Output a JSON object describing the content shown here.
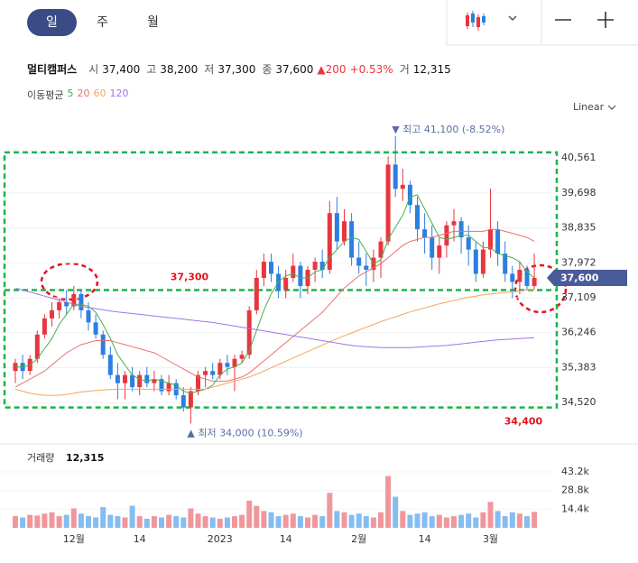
{
  "toolbar": {
    "tabs": [
      "일",
      "주",
      "월"
    ],
    "selected": 0
  },
  "header": {
    "name": "멀티캠퍼스",
    "fields": [
      {
        "label": "시",
        "value": "37,400"
      },
      {
        "label": "고",
        "value": "38,200"
      },
      {
        "label": "저",
        "value": "37,300"
      },
      {
        "label": "종",
        "value": "37,600"
      }
    ],
    "change": "▲200",
    "change_pct": "+0.53%",
    "volume_label": "거",
    "volume": "12,315"
  },
  "ma_legend_title": "이동평균",
  "scale_selector": "Linear",
  "chart_data": {
    "type": "candlestick",
    "categories": [
      null,
      null,
      null,
      null,
      null,
      null,
      null,
      null,
      "12월",
      null,
      null,
      null,
      null,
      null,
      null,
      null,
      null,
      "14",
      null,
      null,
      null,
      null,
      null,
      null,
      null,
      null,
      null,
      null,
      "2023",
      null,
      null,
      null,
      null,
      null,
      null,
      null,
      null,
      "14",
      null,
      null,
      null,
      null,
      null,
      null,
      null,
      null,
      null,
      "2월",
      null,
      null,
      null,
      null,
      null,
      null,
      null,
      null,
      "14",
      null,
      null,
      null,
      null,
      null,
      null,
      null,
      null,
      "3월",
      null,
      null,
      null,
      null,
      null,
      null
    ],
    "open": [
      35300,
      35500,
      35300,
      35600,
      36200,
      36600,
      36800,
      37000,
      36900,
      37200,
      36800,
      36500,
      36200,
      35700,
      35200,
      35000,
      35200,
      34900,
      35200,
      35000,
      35100,
      34800,
      35000,
      34700,
      34400,
      34800,
      35200,
      35300,
      35200,
      35500,
      35400,
      35600,
      35700,
      36800,
      37600,
      38000,
      37700,
      37300,
      37600,
      37900,
      37400,
      37800,
      38000,
      37800,
      39200,
      38500,
      39000,
      38100,
      37900,
      37800,
      38100,
      38500,
      40400,
      39800,
      39900,
      39400,
      38800,
      38600,
      38100,
      38400,
      38900,
      39000,
      38600,
      38300,
      37700,
      38300,
      38800,
      38200,
      37700,
      37500,
      37800,
      37400
    ],
    "high": [
      35600,
      35700,
      35700,
      36300,
      36700,
      37000,
      37100,
      37300,
      37400,
      37300,
      37000,
      36700,
      36300,
      35900,
      35500,
      35300,
      35400,
      35300,
      35400,
      35300,
      35200,
      35200,
      35100,
      34900,
      34900,
      35300,
      35400,
      35500,
      35600,
      35700,
      35700,
      35800,
      36900,
      37800,
      38200,
      38200,
      37900,
      37800,
      38200,
      38000,
      37900,
      38100,
      38300,
      39500,
      39600,
      39300,
      39200,
      38500,
      38200,
      38300,
      38600,
      40600,
      41100,
      40300,
      40000,
      39600,
      39200,
      38900,
      38600,
      39000,
      39300,
      39100,
      38900,
      38500,
      38500,
      39800,
      39000,
      38500,
      37900,
      38000,
      37900,
      38200
    ],
    "low": [
      35000,
      35100,
      35200,
      35500,
      36100,
      36400,
      36600,
      36700,
      36800,
      36600,
      36300,
      36100,
      35600,
      35100,
      34600,
      34600,
      34800,
      34700,
      34900,
      34800,
      34700,
      34700,
      34600,
      34300,
      34000,
      34700,
      34900,
      35100,
      35100,
      35200,
      34800,
      35500,
      35600,
      36700,
      37400,
      37500,
      37100,
      37100,
      37500,
      37100,
      37200,
      37500,
      37600,
      37700,
      38300,
      38400,
      37900,
      37700,
      37400,
      37500,
      37600,
      38400,
      39600,
      39500,
      39200,
      38500,
      38200,
      37800,
      37700,
      38100,
      38500,
      38200,
      37900,
      37500,
      37600,
      38100,
      37900,
      37500,
      37100,
      37200,
      37300,
      37300
    ],
    "close": [
      35500,
      35300,
      35600,
      36200,
      36600,
      36800,
      37000,
      36900,
      37200,
      36800,
      36500,
      36200,
      35700,
      35200,
      35000,
      35200,
      34900,
      35200,
      35000,
      35100,
      34800,
      35000,
      34700,
      34400,
      34800,
      35200,
      35300,
      35200,
      35500,
      35400,
      35600,
      35700,
      36800,
      37600,
      38000,
      37700,
      37300,
      37600,
      37900,
      37400,
      37800,
      38000,
      37800,
      39200,
      38500,
      39000,
      38100,
      37900,
      37800,
      38100,
      38500,
      40400,
      39800,
      39900,
      39400,
      38800,
      38600,
      38100,
      38400,
      38900,
      39000,
      38600,
      38300,
      37700,
      38300,
      38800,
      38200,
      37700,
      37500,
      37800,
      37400,
      37600
    ],
    "up_color": "#e8363f",
    "down_color": "#2b7fe0",
    "series": [
      {
        "name": "5",
        "color": "#45b04f",
        "values": [
          35400,
          35400,
          35450,
          35600,
          35850,
          36100,
          36450,
          36700,
          36950,
          36950,
          36900,
          36750,
          36450,
          36100,
          35700,
          35450,
          35200,
          35100,
          35050,
          35100,
          35050,
          35000,
          34950,
          34800,
          34750,
          34800,
          34850,
          34950,
          35200,
          35350,
          35400,
          35500,
          35800,
          36300,
          36800,
          37200,
          37500,
          37650,
          37700,
          37600,
          37600,
          37750,
          37800,
          38100,
          38300,
          38500,
          38600,
          38550,
          38250,
          37950,
          38050,
          38550,
          38850,
          39150,
          39600,
          39650,
          39300,
          38950,
          38600,
          38550,
          38600,
          38650,
          38650,
          38500,
          38350,
          38350,
          38200,
          38150,
          38100,
          38000,
          37750,
          37600
        ]
      },
      {
        "name": "20",
        "color": "#e8716f",
        "values": [
          34900,
          35000,
          35100,
          35200,
          35300,
          35450,
          35600,
          35750,
          35850,
          35950,
          36000,
          36050,
          36050,
          36050,
          36000,
          35950,
          35900,
          35850,
          35800,
          35750,
          35650,
          35550,
          35450,
          35350,
          35250,
          35150,
          35100,
          35050,
          35050,
          35050,
          35100,
          35150,
          35250,
          35400,
          35550,
          35700,
          35850,
          36000,
          36150,
          36300,
          36450,
          36600,
          36750,
          36950,
          37150,
          37350,
          37500,
          37650,
          37750,
          37850,
          37950,
          38100,
          38250,
          38400,
          38500,
          38550,
          38600,
          38600,
          38650,
          38700,
          38750,
          38750,
          38750,
          38750,
          38750,
          38800,
          38800,
          38750,
          38700,
          38650,
          38600,
          38500
        ]
      },
      {
        "name": "60",
        "color": "#f2a660",
        "values": [
          34850,
          34800,
          34750,
          34720,
          34700,
          34700,
          34700,
          34720,
          34750,
          34780,
          34800,
          34820,
          34830,
          34840,
          34850,
          34850,
          34850,
          34850,
          34850,
          34850,
          34850,
          34850,
          34850,
          34850,
          34850,
          34850,
          34850,
          34900,
          34950,
          35000,
          35050,
          35100,
          35150,
          35220,
          35300,
          35380,
          35460,
          35540,
          35620,
          35700,
          35780,
          35860,
          35940,
          36020,
          36100,
          36170,
          36240,
          36310,
          36380,
          36450,
          36520,
          36580,
          36640,
          36700,
          36760,
          36810,
          36860,
          36910,
          36960,
          37000,
          37040,
          37080,
          37120,
          37150,
          37180,
          37200,
          37220,
          37240,
          37260,
          37280,
          37300,
          37320
        ]
      },
      {
        "name": "120",
        "color": "#a274e8",
        "values": [
          37350,
          37300,
          37250,
          37200,
          37150,
          37100,
          37050,
          37000,
          36950,
          36900,
          36870,
          36840,
          36810,
          36780,
          36760,
          36740,
          36720,
          36700,
          36680,
          36660,
          36640,
          36620,
          36600,
          36580,
          36560,
          36540,
          36520,
          36500,
          36470,
          36440,
          36410,
          36380,
          36350,
          36320,
          36290,
          36260,
          36230,
          36200,
          36170,
          36140,
          36110,
          36080,
          36050,
          36020,
          35990,
          35960,
          35930,
          35910,
          35900,
          35890,
          35880,
          35880,
          35880,
          35880,
          35880,
          35890,
          35900,
          35910,
          35920,
          35930,
          35950,
          35970,
          35990,
          36010,
          36030,
          36050,
          36070,
          36080,
          36090,
          36100,
          36110,
          36120
        ]
      }
    ],
    "ylim": [
      33900,
      41300
    ],
    "yticks": [
      {
        "value": 40561,
        "label": "40,561"
      },
      {
        "value": 39698,
        "label": "39,698"
      },
      {
        "value": 38835,
        "label": "38,835"
      },
      {
        "value": 37972,
        "label": "37,972"
      },
      {
        "value": 37109,
        "label": "37,109"
      },
      {
        "value": 36246,
        "label": "36,246"
      },
      {
        "value": 35383,
        "label": "35,383"
      },
      {
        "value": 34520,
        "label": "34,520"
      }
    ],
    "grid": true,
    "high_label": "▼ 최고 41,100 (-8.52%)",
    "low_label": "▲ 최저 34,000 (10.59%)",
    "last_price": {
      "value": 37600,
      "label": "37,600"
    },
    "level": {
      "value": 37300,
      "label": "37,300",
      "color": "#1db34a",
      "label_color": "#e3141c"
    },
    "box": {
      "ymin": {
        "value": 34400,
        "label": "34,400"
      },
      "ymax": 40700,
      "color": "#1db34a"
    },
    "volume": {
      "title": "거래량",
      "last_label": "12,315",
      "values": [
        9000,
        8000,
        10000,
        9500,
        11000,
        12000,
        9000,
        10000,
        15000,
        11000,
        9000,
        8000,
        16000,
        10000,
        9000,
        8000,
        17000,
        9000,
        7000,
        9000,
        8000,
        10000,
        9000,
        8000,
        15000,
        11000,
        9000,
        8000,
        7000,
        8000,
        9000,
        10000,
        21000,
        17000,
        13000,
        12000,
        9000,
        10000,
        11000,
        9000,
        8000,
        10000,
        9000,
        27000,
        13000,
        12000,
        10000,
        11000,
        9000,
        8000,
        12000,
        40000,
        24000,
        13000,
        10000,
        11000,
        12000,
        9000,
        10000,
        8000,
        9000,
        10000,
        11000,
        8000,
        12000,
        20000,
        13000,
        9000,
        12000,
        11000,
        9000,
        12315
      ],
      "up_color": "#f0979c",
      "down_color": "#86bdf0",
      "ylim": [
        0,
        48800
      ],
      "yticks": [
        {
          "value": 14400,
          "label": "14.4k"
        },
        {
          "value": 28800,
          "label": "28.8k"
        },
        {
          "value": 43200,
          "label": "43.2k"
        }
      ]
    }
  }
}
